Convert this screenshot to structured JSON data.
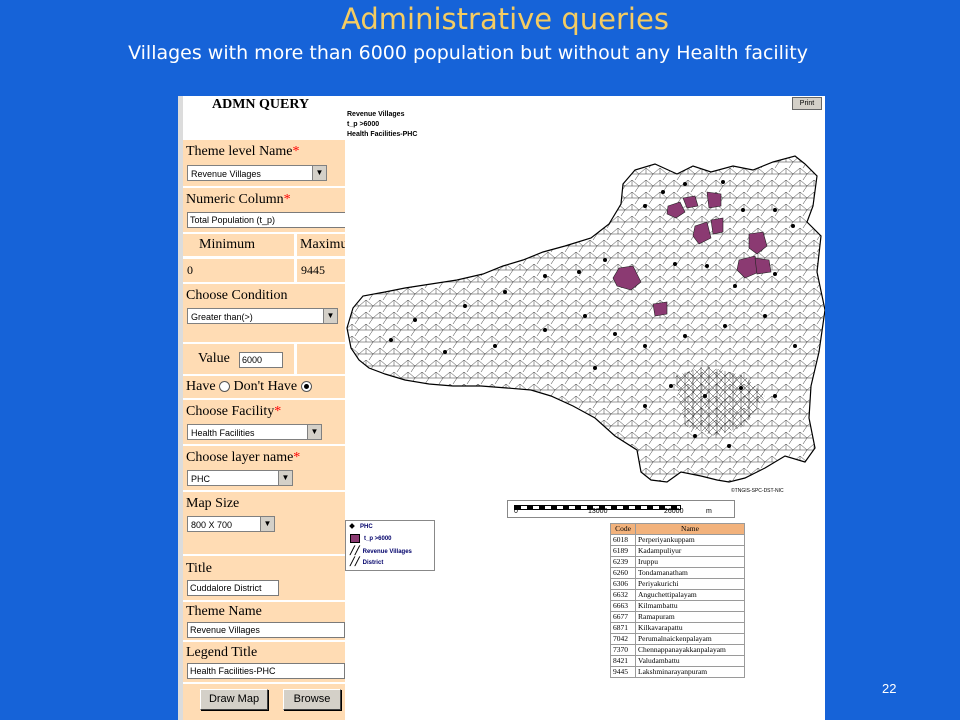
{
  "slide": {
    "title": "Administrative queries",
    "subtitle": "Villages with more than 6000 population but without any Health facility",
    "page_number": "22"
  },
  "form": {
    "heading": "ADMN QUERY",
    "theme_level_label": "Theme level Name",
    "theme_level_value": "Revenue Villages",
    "numeric_column_label": "Numeric Column",
    "numeric_column_value": "Total Population (t_p)",
    "minimum_label": "Minimum",
    "maximum_label": "Maximu",
    "minimum_value": "0",
    "maximum_value": "9445",
    "choose_condition_label": "Choose Condition",
    "condition_value": "Greater than(>)",
    "value_label": "Value",
    "value_input": "6000",
    "have_label": "Have",
    "dont_have_label": "Don't Have",
    "choose_facility_label": "Choose Facility",
    "facility_value": "Health Facilities",
    "choose_layer_label": "Choose layer name",
    "layer_value": "PHC",
    "map_size_label": "Map Size",
    "map_size_value": "800 X 700",
    "title_label": "Title",
    "title_value": "Cuddalore District",
    "theme_name_label": "Theme Name",
    "theme_name_value": "Revenue Villages",
    "legend_title_label": "Legend Title",
    "legend_title_value": "Health Facilities-PHC",
    "required_mark": "*",
    "draw_map_button": "Draw Map",
    "browse_button": "Browse"
  },
  "map": {
    "heading_lines": [
      "Revenue Villages",
      "t_p >6000",
      "Health Facilities-PHC"
    ],
    "print_button": "Print",
    "copyright": "©TNGIS-SPC-DST-NIC",
    "scale_labels": [
      "0",
      "13000",
      "26000",
      "m"
    ],
    "legend": [
      {
        "label": "PHC",
        "icon": "diamond-icon"
      },
      {
        "label": "t_p  >6000",
        "icon": "filled-square-icon"
      },
      {
        "label": "Revenue Villages",
        "icon": "line-icon"
      },
      {
        "label": "District",
        "icon": "line-icon"
      }
    ],
    "highlight_color": "#8b3a72"
  },
  "table": {
    "headers": [
      "Code",
      "Name"
    ],
    "rows": [
      [
        "6018",
        "Perperiyankuppam"
      ],
      [
        "6189",
        "Kadampuliyur"
      ],
      [
        "6239",
        "Iruppu"
      ],
      [
        "6260",
        "Tondamanatham"
      ],
      [
        "6306",
        "Periyakurichi"
      ],
      [
        "6632",
        "Anguchettipalayam"
      ],
      [
        "6663",
        "Kilmambattu"
      ],
      [
        "6677",
        "Ramapuram"
      ],
      [
        "6871",
        "Kilkavarapattu"
      ],
      [
        "7042",
        "Perumalnaickenpalayam"
      ],
      [
        "7370",
        "Chennappanayakkanpalayam"
      ],
      [
        "8421",
        "Valudambattu"
      ],
      [
        "9445",
        "Lakshminarayanpuram"
      ]
    ]
  }
}
